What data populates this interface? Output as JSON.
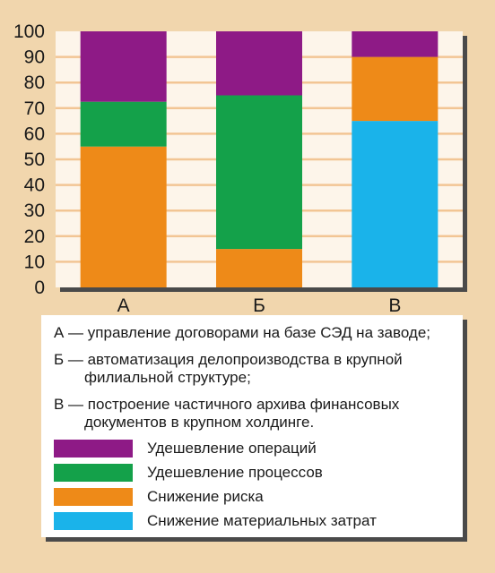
{
  "chart_data": {
    "type": "bar",
    "stacked": true,
    "categories": [
      "А",
      "Б",
      "В"
    ],
    "series": [
      {
        "name": "Снижение материальных затрат",
        "color": "#1ab3ea",
        "values": [
          0,
          0,
          65
        ]
      },
      {
        "name": "Снижение риска",
        "color": "#ee8a18",
        "values": [
          55,
          15,
          25
        ]
      },
      {
        "name": "Удешевление процессов",
        "color": "#14a14a",
        "values": [
          17.5,
          60,
          0
        ]
      },
      {
        "name": "Удешевление операций",
        "color": "#8e1a86",
        "values": [
          27.5,
          25,
          10
        ]
      }
    ],
    "yticks": [
      0,
      10,
      20,
      30,
      40,
      50,
      60,
      70,
      80,
      90,
      100
    ],
    "ylim": [
      0,
      100
    ],
    "grid": true,
    "legend_order": [
      "Удешевление операций",
      "Удешевление процессов",
      "Снижение риска",
      "Снижение материальных затрат"
    ]
  },
  "notes": [
    {
      "lines": [
        "А — управление договорами на базе СЭД на заводе;"
      ]
    },
    {
      "lines": [
        "Б — автоматизация делопроизводства в крупной",
        "филиальной структуре;"
      ]
    },
    {
      "lines": [
        "В — построение частичного архива финансовых",
        "документов в крупном холдинге."
      ]
    }
  ],
  "legend": [
    {
      "label": "Удешевление операций",
      "color": "#8e1a86"
    },
    {
      "label": "Удешевление процессов",
      "color": "#14a14a"
    },
    {
      "label": "Снижение риска",
      "color": "#ee8a18"
    },
    {
      "label": "Снижение материальных затрат",
      "color": "#1ab3ea"
    }
  ],
  "colors": {
    "background": "#f1d6ad",
    "plot_background": "#fdf5ea",
    "gridline": "#f2c594"
  }
}
